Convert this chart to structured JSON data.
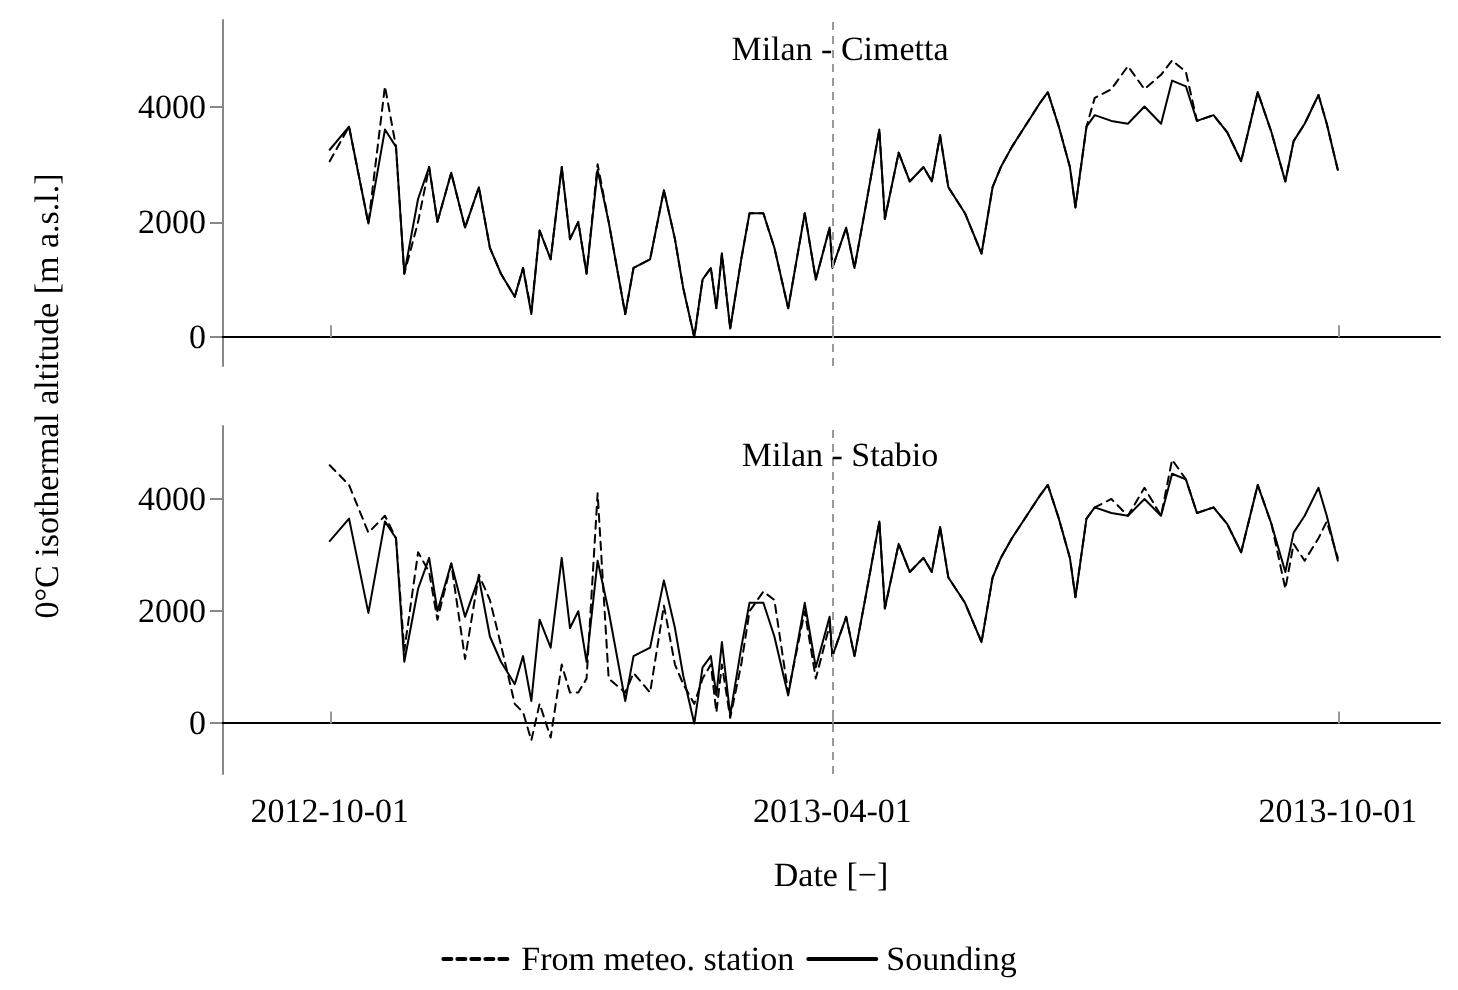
{
  "chart_data": [
    {
      "type": "line",
      "title": "Milan - Cimetta",
      "ylabel": "0°C isothermal altitude [m a.s.l.]",
      "x": [
        "2012-10-01",
        "2012-10-08",
        "2012-10-15",
        "2012-10-21",
        "2012-10-25",
        "2012-10-28",
        "2012-11-02",
        "2012-11-06",
        "2012-11-09",
        "2012-11-14",
        "2012-11-19",
        "2012-11-24",
        "2012-11-28",
        "2012-12-02",
        "2012-12-07",
        "2012-12-10",
        "2012-12-13",
        "2012-12-16",
        "2012-12-20",
        "2012-12-24",
        "2012-12-27",
        "2012-12-30",
        "2013-01-02",
        "2013-01-06",
        "2013-01-10",
        "2013-01-16",
        "2013-01-19",
        "2013-01-25",
        "2013-01-30",
        "2013-02-03",
        "2013-02-06",
        "2013-02-10",
        "2013-02-13",
        "2013-02-16",
        "2013-02-18",
        "2013-02-20",
        "2013-02-23",
        "2013-02-27",
        "2013-03-02",
        "2013-03-07",
        "2013-03-11",
        "2013-03-16",
        "2013-03-22",
        "2013-03-26",
        "2013-03-31",
        "2013-04-01",
        "2013-04-06",
        "2013-04-09",
        "2013-04-13",
        "2013-04-18",
        "2013-04-20",
        "2013-04-25",
        "2013-04-29",
        "2013-05-04",
        "2013-05-07",
        "2013-05-10",
        "2013-05-13",
        "2013-05-19",
        "2013-05-25",
        "2013-05-29",
        "2013-06-01",
        "2013-06-05",
        "2013-06-11",
        "2013-06-15",
        "2013-06-18",
        "2013-06-22",
        "2013-06-26",
        "2013-06-28",
        "2013-07-02",
        "2013-07-05",
        "2013-07-11",
        "2013-07-17",
        "2013-07-23",
        "2013-07-29",
        "2013-08-02",
        "2013-08-07",
        "2013-08-11",
        "2013-08-17",
        "2013-08-22",
        "2013-08-27",
        "2013-09-02",
        "2013-09-07",
        "2013-09-12",
        "2013-09-15",
        "2013-09-19",
        "2013-09-24",
        "2013-09-27",
        "2013-10-01"
      ],
      "series": [
        {
          "color": "#000000",
          "line_style": "dashed",
          "values": [
            3050,
            3650,
            1970,
            4350,
            3300,
            1100,
            2000,
            2950,
            2000,
            2850,
            1900,
            2600,
            1550,
            1100,
            700,
            1200,
            450,
            1850,
            1350,
            2950,
            1700,
            2000,
            1100,
            3000,
            2000,
            400,
            1200,
            1350,
            2550,
            1700,
            850,
            0,
            1000,
            1200,
            500,
            1450,
            150,
            1350,
            2150,
            2150,
            1550,
            500,
            2150,
            1000,
            1900,
            1200,
            1900,
            1200,
            2250,
            3600,
            2050,
            3200,
            2700,
            2950,
            2700,
            3500,
            2600,
            2150,
            1450,
            2600,
            2950,
            3300,
            3750,
            4050,
            4250,
            3650,
            2950,
            2250,
            3650,
            4150,
            4300,
            4700,
            4300,
            4550,
            4800,
            4600,
            3750,
            3850,
            3550,
            3050,
            4250,
            3550,
            2700,
            3400,
            3700,
            4200,
            3700,
            2900
          ]
        },
        {
          "color": "#000000",
          "line_style": "solid",
          "values": [
            3250,
            3650,
            1970,
            3600,
            3300,
            1100,
            2400,
            2950,
            2000,
            2850,
            1900,
            2600,
            1550,
            1100,
            700,
            1200,
            400,
            1850,
            1350,
            2950,
            1700,
            2000,
            1100,
            2900,
            2000,
            400,
            1200,
            1350,
            2550,
            1700,
            850,
            0,
            1000,
            1200,
            500,
            1450,
            150,
            1350,
            2150,
            2150,
            1550,
            500,
            2150,
            1000,
            1900,
            1200,
            1900,
            1200,
            2250,
            3600,
            2050,
            3200,
            2700,
            2950,
            2700,
            3500,
            2600,
            2150,
            1450,
            2600,
            2950,
            3300,
            3750,
            4050,
            4250,
            3650,
            2950,
            2250,
            3650,
            3850,
            3750,
            3700,
            4000,
            3700,
            4450,
            4350,
            3750,
            3850,
            3550,
            3050,
            4250,
            3550,
            2700,
            3400,
            3700,
            4200,
            3700,
            2900
          ]
        }
      ],
      "xlim": [
        "2012-08-23",
        "2013-11-07"
      ],
      "xticks": [
        "2012-10-01",
        "2013-04-01",
        "2013-10-01"
      ],
      "ylim": [
        -500,
        5500
      ],
      "yticks": [
        0,
        2000,
        4000
      ],
      "ref_lines": [
        {
          "axis": "x",
          "value": "2013-04-01",
          "color": "#999999",
          "line_style": "dashed"
        }
      ],
      "tick_labels": "y",
      "grid": false,
      "legend": false,
      "marker": "none"
    },
    {
      "type": "line",
      "title": "Milan - Stabio",
      "xlabel": "Date [−]",
      "x": [
        "2012-10-01",
        "2012-10-08",
        "2012-10-15",
        "2012-10-21",
        "2012-10-25",
        "2012-10-28",
        "2012-11-02",
        "2012-11-06",
        "2012-11-09",
        "2012-11-14",
        "2012-11-19",
        "2012-11-24",
        "2012-11-28",
        "2012-12-02",
        "2012-12-07",
        "2012-12-10",
        "2012-12-13",
        "2012-12-16",
        "2012-12-20",
        "2012-12-24",
        "2012-12-27",
        "2012-12-30",
        "2013-01-02",
        "2013-01-06",
        "2013-01-10",
        "2013-01-16",
        "2013-01-19",
        "2013-01-25",
        "2013-01-30",
        "2013-02-03",
        "2013-02-06",
        "2013-02-10",
        "2013-02-13",
        "2013-02-16",
        "2013-02-18",
        "2013-02-20",
        "2013-02-23",
        "2013-02-27",
        "2013-03-02",
        "2013-03-07",
        "2013-03-11",
        "2013-03-16",
        "2013-03-22",
        "2013-03-26",
        "2013-03-31",
        "2013-04-01",
        "2013-04-06",
        "2013-04-09",
        "2013-04-13",
        "2013-04-18",
        "2013-04-20",
        "2013-04-25",
        "2013-04-29",
        "2013-05-04",
        "2013-05-07",
        "2013-05-10",
        "2013-05-13",
        "2013-05-19",
        "2013-05-25",
        "2013-05-29",
        "2013-06-01",
        "2013-06-05",
        "2013-06-11",
        "2013-06-15",
        "2013-06-18",
        "2013-06-22",
        "2013-06-26",
        "2013-06-28",
        "2013-07-02",
        "2013-07-05",
        "2013-07-11",
        "2013-07-17",
        "2013-07-23",
        "2013-07-29",
        "2013-08-02",
        "2013-08-07",
        "2013-08-11",
        "2013-08-17",
        "2013-08-22",
        "2013-08-27",
        "2013-09-02",
        "2013-09-07",
        "2013-09-12",
        "2013-09-15",
        "2013-09-19",
        "2013-09-24",
        "2013-09-27",
        "2013-10-01"
      ],
      "series": [
        {
          "name": "From meteo. station",
          "color": "#000000",
          "line_style": "dashed",
          "values": [
            4600,
            4250,
            3400,
            3700,
            3300,
            1300,
            3050,
            2700,
            1850,
            2850,
            1150,
            2650,
            2200,
            1400,
            350,
            200,
            -300,
            350,
            -250,
            1050,
            550,
            550,
            800,
            4100,
            800,
            550,
            900,
            550,
            2100,
            1050,
            700,
            350,
            800,
            1050,
            200,
            1050,
            100,
            1050,
            2000,
            2350,
            2200,
            550,
            2000,
            800,
            1750,
            1200,
            1900,
            1200,
            2250,
            3600,
            2050,
            3200,
            2700,
            2950,
            2700,
            3500,
            2600,
            2150,
            1450,
            2600,
            2950,
            3300,
            3750,
            4050,
            4250,
            3650,
            2950,
            2250,
            3650,
            3850,
            4000,
            3700,
            4200,
            3700,
            4700,
            4350,
            3750,
            3850,
            3550,
            3050,
            4250,
            3550,
            2400,
            3200,
            2900,
            3300,
            3600,
            2950
          ]
        },
        {
          "name": "Sounding",
          "color": "#000000",
          "line_style": "solid",
          "values": [
            3250,
            3650,
            1970,
            3600,
            3300,
            1100,
            2400,
            2950,
            2000,
            2850,
            1900,
            2600,
            1550,
            1100,
            700,
            1200,
            400,
            1850,
            1350,
            2950,
            1700,
            2000,
            1100,
            2900,
            2000,
            400,
            1200,
            1350,
            2550,
            1700,
            850,
            0,
            1000,
            1200,
            500,
            1450,
            150,
            1350,
            2150,
            2150,
            1550,
            500,
            2150,
            1000,
            1900,
            1200,
            1900,
            1200,
            2250,
            3600,
            2050,
            3200,
            2700,
            2950,
            2700,
            3500,
            2600,
            2150,
            1450,
            2600,
            2950,
            3300,
            3750,
            4050,
            4250,
            3650,
            2950,
            2250,
            3650,
            3850,
            3750,
            3700,
            4000,
            3700,
            4450,
            4350,
            3750,
            3850,
            3550,
            3050,
            4250,
            3550,
            2700,
            3400,
            3700,
            4200,
            3700,
            2900
          ]
        }
      ],
      "xlim": [
        "2012-08-23",
        "2013-11-07"
      ],
      "xticks": [
        "2012-10-01",
        "2013-04-01",
        "2013-10-01"
      ],
      "ylim": [
        -900,
        5300
      ],
      "yticks": [
        0,
        2000,
        4000
      ],
      "ref_lines": [
        {
          "axis": "x",
          "value": "2013-04-01",
          "color": "#999999",
          "line_style": "dashed"
        }
      ],
      "grid": false,
      "legend": "bottom",
      "marker": "none"
    }
  ]
}
